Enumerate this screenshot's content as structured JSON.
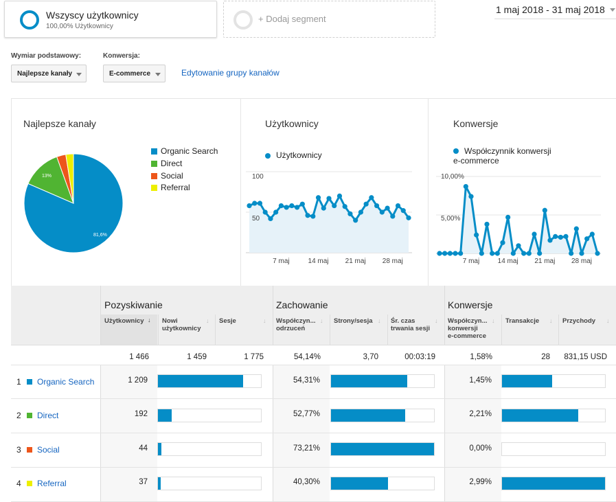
{
  "segments": {
    "active": {
      "title": "Wszyscy użytkownicy",
      "subtitle": "100,00% Użytkownicy"
    },
    "add_label": "+ Dodaj segment"
  },
  "date_range": "1 maj 2018 - 31 maj 2018",
  "controls": {
    "dimension_label": "Wymiar podstawowy:",
    "dimension_value": "Najlepsze kanały",
    "conversion_label": "Konwersja:",
    "conversion_value": "E-commerce",
    "edit_link": "Edytowanie grupy kanałów"
  },
  "colors": {
    "accent": "#058dc7",
    "organic": "#058dc7",
    "direct": "#50b432",
    "social": "#ed561b",
    "referral": "#edef00"
  },
  "pie_panel": {
    "title": "Najlepsze kanały",
    "legend": [
      "Organic Search",
      "Direct",
      "Social",
      "Referral"
    ],
    "slice_labels": [
      "81,6%",
      "13%"
    ]
  },
  "users_panel": {
    "title": "Użytkownicy",
    "legend": "Użytkownicy",
    "y_ticks": [
      "100",
      "50"
    ],
    "x_ticks": [
      "7 maj",
      "14 maj",
      "21 maj",
      "28 maj"
    ]
  },
  "conv_panel": {
    "title": "Konwersje",
    "legend_line1": "Współczynnik konwersji",
    "legend_line2": "e-commerce",
    "y_ticks": [
      "10,00%",
      "5,00%"
    ],
    "x_ticks": [
      "7 maj",
      "14 maj",
      "21 maj",
      "28 maj"
    ]
  },
  "chart_data": [
    {
      "type": "pie",
      "categories": [
        "Organic Search",
        "Direct",
        "Social",
        "Referral"
      ],
      "values": [
        81.6,
        13.0,
        3.0,
        2.5
      ]
    },
    {
      "type": "line",
      "series": [
        {
          "name": "Użytkownicy",
          "values": [
            58,
            61,
            61,
            50,
            42,
            50,
            58,
            56,
            58,
            56,
            60,
            46,
            45,
            68,
            55,
            67,
            58,
            70,
            57,
            48,
            40,
            50,
            60,
            68,
            58,
            50,
            55,
            45,
            58,
            52,
            43
          ]
        }
      ],
      "x": [
        "1 maj",
        "2 maj",
        "3 maj",
        "4 maj",
        "5 maj",
        "6 maj",
        "7 maj",
        "8 maj",
        "9 maj",
        "10 maj",
        "11 maj",
        "12 maj",
        "13 maj",
        "14 maj",
        "15 maj",
        "16 maj",
        "17 maj",
        "18 maj",
        "19 maj",
        "20 maj",
        "21 maj",
        "22 maj",
        "23 maj",
        "24 maj",
        "25 maj",
        "26 maj",
        "27 maj",
        "28 maj",
        "29 maj",
        "30 maj",
        "31 maj"
      ],
      "ylim": [
        0,
        100
      ]
    },
    {
      "type": "line",
      "series": [
        {
          "name": "Współczynnik konwersji e-commerce",
          "values": [
            0,
            0,
            0,
            0,
            0,
            8.7,
            7.4,
            2.4,
            0,
            3.8,
            0,
            0,
            1.4,
            4.7,
            0,
            1.0,
            0,
            0,
            2.5,
            0,
            5.6,
            1.7,
            2.2,
            2.1,
            2.2,
            0,
            3.2,
            0,
            1.9,
            2.5,
            0
          ]
        }
      ],
      "x": [
        "1 maj",
        "2 maj",
        "3 maj",
        "4 maj",
        "5 maj",
        "6 maj",
        "7 maj",
        "8 maj",
        "9 maj",
        "10 maj",
        "11 maj",
        "12 maj",
        "13 maj",
        "14 maj",
        "15 maj",
        "16 maj",
        "17 maj",
        "18 maj",
        "19 maj",
        "20 maj",
        "21 maj",
        "22 maj",
        "23 maj",
        "24 maj",
        "25 maj",
        "26 maj",
        "27 maj",
        "28 maj",
        "29 maj",
        "30 maj",
        "31 maj"
      ],
      "ylim": [
        0,
        10
      ]
    }
  ],
  "table": {
    "groups": [
      "Pozyskiwanie",
      "Zachowanie",
      "Konwersje"
    ],
    "headers": [
      [
        "Użytkownicy"
      ],
      [
        "Nowi",
        "użytkownicy"
      ],
      [
        "Sesje"
      ],
      [
        "Współczyn...",
        "odrzuceń"
      ],
      [
        "Strony/sesja"
      ],
      [
        "Śr. czas",
        "trwania sesji"
      ],
      [
        "Współczyn...",
        "konwersji",
        "e-commerce"
      ],
      [
        "Transakcje"
      ],
      [
        "Przychody"
      ]
    ],
    "totals": [
      "1 466",
      "1 459",
      "1 775",
      "54,14%",
      "3,70",
      "00:03:19",
      "1,58%",
      "28",
      "831,15 USD"
    ],
    "rows": [
      {
        "num": "1",
        "name": "Organic Search",
        "users": "1 209",
        "users_frac": 0.825,
        "bounce": "54,31%",
        "bounce_frac": 0.742,
        "conv": "1,45%",
        "conv_frac": 0.485
      },
      {
        "num": "2",
        "name": "Direct",
        "users": "192",
        "users_frac": 0.131,
        "bounce": "52,77%",
        "bounce_frac": 0.721,
        "conv": "2,21%",
        "conv_frac": 0.739
      },
      {
        "num": "3",
        "name": "Social",
        "users": "44",
        "users_frac": 0.03,
        "bounce": "73,21%",
        "bounce_frac": 1.0,
        "conv": "0,00%",
        "conv_frac": 0.0
      },
      {
        "num": "4",
        "name": "Referral",
        "users": "37",
        "users_frac": 0.025,
        "bounce": "40,30%",
        "bounce_frac": 0.55,
        "conv": "2,99%",
        "conv_frac": 1.0
      }
    ]
  }
}
